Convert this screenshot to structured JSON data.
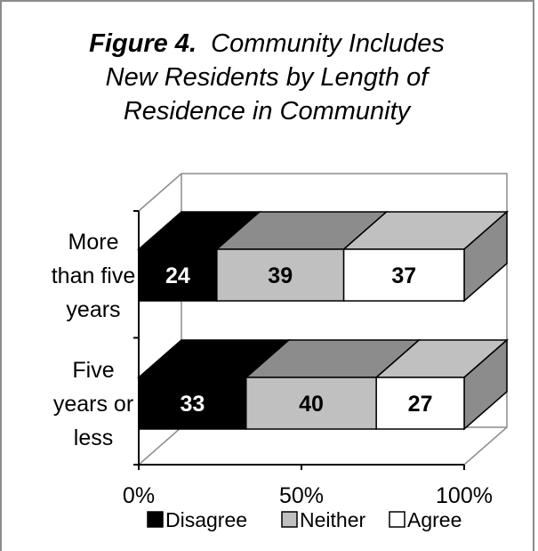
{
  "title": {
    "figure_label": "Figure 4.",
    "text_line1": "Community Includes",
    "text_line2": "New Residents by Length of",
    "text_line3": "Residence in Community"
  },
  "chart_data": {
    "type": "bar",
    "orientation": "horizontal",
    "stacked": "percent",
    "categories": [
      "More than five years",
      "Five years or less"
    ],
    "category_lines": [
      [
        "More",
        "than five",
        "years"
      ],
      [
        "Five",
        "years or",
        "less"
      ]
    ],
    "series": [
      {
        "name": "Disagree",
        "values": [
          24,
          33
        ],
        "color": "#000000",
        "label_color": "#ffffff"
      },
      {
        "name": "Neither",
        "values": [
          39,
          40
        ],
        "color": "#c0c0c0",
        "label_color": "#000000"
      },
      {
        "name": "Agree",
        "values": [
          37,
          27
        ],
        "color": "#ffffff",
        "label_color": "#000000"
      }
    ],
    "xlim": [
      0,
      100
    ],
    "x_ticks": [
      "0%",
      "50%",
      "100%"
    ],
    "legend_position": "bottom",
    "three_d": true
  },
  "colors": {
    "disagree": "#000000",
    "neither": "#c0c0c0",
    "agree": "#ffffff",
    "axis": "#000000",
    "wall": "#8c8c8c"
  }
}
